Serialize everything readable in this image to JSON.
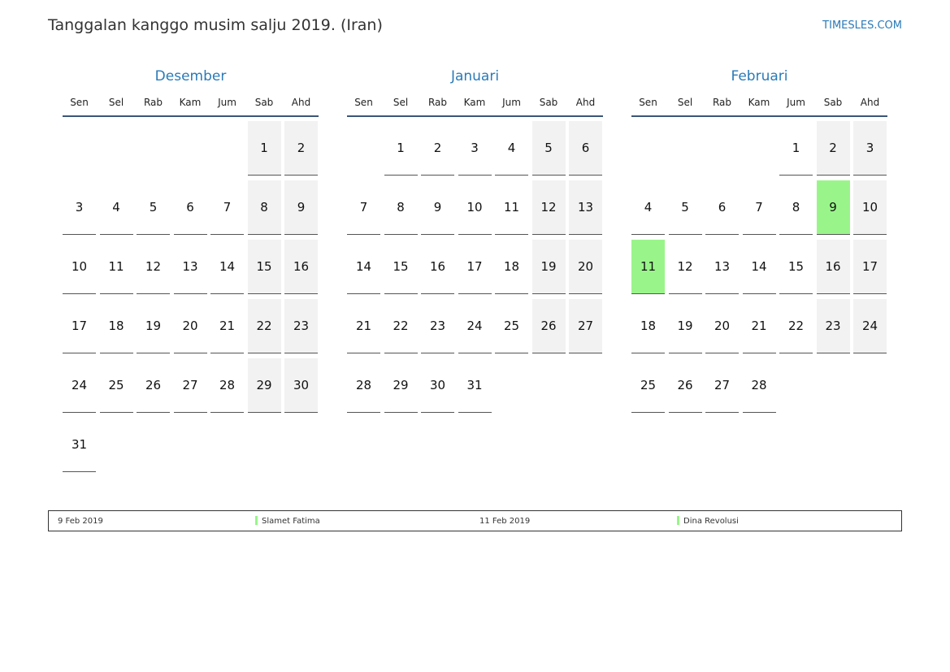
{
  "header": {
    "title": "Tanggalan kanggo musim salju 2019. (Iran)",
    "site": "TIMESLES.COM"
  },
  "weekdays": [
    "Sen",
    "Sel",
    "Rab",
    "Kam",
    "Jum",
    "Sab",
    "Ahd"
  ],
  "highlight_color": "#99f58a",
  "months": [
    {
      "name": "Desember",
      "highlighted": [],
      "weeks": [
        [
          null,
          null,
          null,
          null,
          null,
          1,
          2
        ],
        [
          3,
          4,
          5,
          6,
          7,
          8,
          9
        ],
        [
          10,
          11,
          12,
          13,
          14,
          15,
          16
        ],
        [
          17,
          18,
          19,
          20,
          21,
          22,
          23
        ],
        [
          24,
          25,
          26,
          27,
          28,
          29,
          30
        ],
        [
          31,
          null,
          null,
          null,
          null,
          null,
          null
        ]
      ]
    },
    {
      "name": "Januari",
      "highlighted": [],
      "weeks": [
        [
          null,
          1,
          2,
          3,
          4,
          5,
          6
        ],
        [
          7,
          8,
          9,
          10,
          11,
          12,
          13
        ],
        [
          14,
          15,
          16,
          17,
          18,
          19,
          20
        ],
        [
          21,
          22,
          23,
          24,
          25,
          26,
          27
        ],
        [
          28,
          29,
          30,
          31,
          null,
          null,
          null
        ]
      ]
    },
    {
      "name": "Februari",
      "highlighted": [
        9,
        11
      ],
      "weeks": [
        [
          null,
          null,
          null,
          null,
          1,
          2,
          3
        ],
        [
          4,
          5,
          6,
          7,
          8,
          9,
          10
        ],
        [
          11,
          12,
          13,
          14,
          15,
          16,
          17
        ],
        [
          18,
          19,
          20,
          21,
          22,
          23,
          24
        ],
        [
          25,
          26,
          27,
          28,
          null,
          null,
          null
        ]
      ]
    }
  ],
  "holidays": [
    {
      "date": "9 Feb 2019",
      "name": "Slamet Fatima"
    },
    {
      "date": "11 Feb 2019",
      "name": "Dina Revolusi"
    }
  ]
}
